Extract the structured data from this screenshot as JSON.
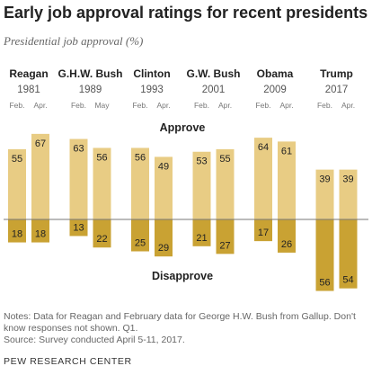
{
  "title": "Early job approval ratings for recent presidents",
  "subtitle": "Presidential job approval (%)",
  "notes": "Notes: Data for Reagan and February data for George H.W. Bush from Gallup. Don't know responses not shown. Q1.",
  "source": "Source: Survey conducted April 5-11, 2017.",
  "brand": "PEW RESEARCH CENTER",
  "colors": {
    "approve": "#e8cc84",
    "disapprove": "#c9a233",
    "baseline": "#777777",
    "name_text": "#222222",
    "year_text": "#555555",
    "month_text": "#777777"
  },
  "chart_data": {
    "type": "bar",
    "orientation": "diverging",
    "approve_label": "Approve",
    "disapprove_label": "Disapprove",
    "groups": [
      {
        "name": "Reagan",
        "year": "1981",
        "months": [
          "Feb.",
          "Apr."
        ],
        "approve": [
          55,
          67
        ],
        "disapprove": [
          18,
          18
        ]
      },
      {
        "name": "G.H.W. Bush",
        "year": "1989",
        "months": [
          "Feb.",
          "May"
        ],
        "approve": [
          63,
          56
        ],
        "disapprove": [
          13,
          22
        ]
      },
      {
        "name": "Clinton",
        "year": "1993",
        "months": [
          "Feb.",
          "Apr."
        ],
        "approve": [
          56,
          49
        ],
        "disapprove": [
          25,
          29
        ]
      },
      {
        "name": "G.W. Bush",
        "year": "2001",
        "months": [
          "Feb.",
          "Apr."
        ],
        "approve": [
          53,
          55
        ],
        "disapprove": [
          21,
          27
        ]
      },
      {
        "name": "Obama",
        "year": "2009",
        "months": [
          "Feb.",
          "Apr."
        ],
        "approve": [
          64,
          61
        ],
        "disapprove": [
          17,
          26
        ]
      },
      {
        "name": "Trump",
        "year": "2017",
        "months": [
          "Feb.",
          "Apr."
        ],
        "approve": [
          39,
          39
        ],
        "disapprove": [
          56,
          54
        ]
      }
    ]
  }
}
